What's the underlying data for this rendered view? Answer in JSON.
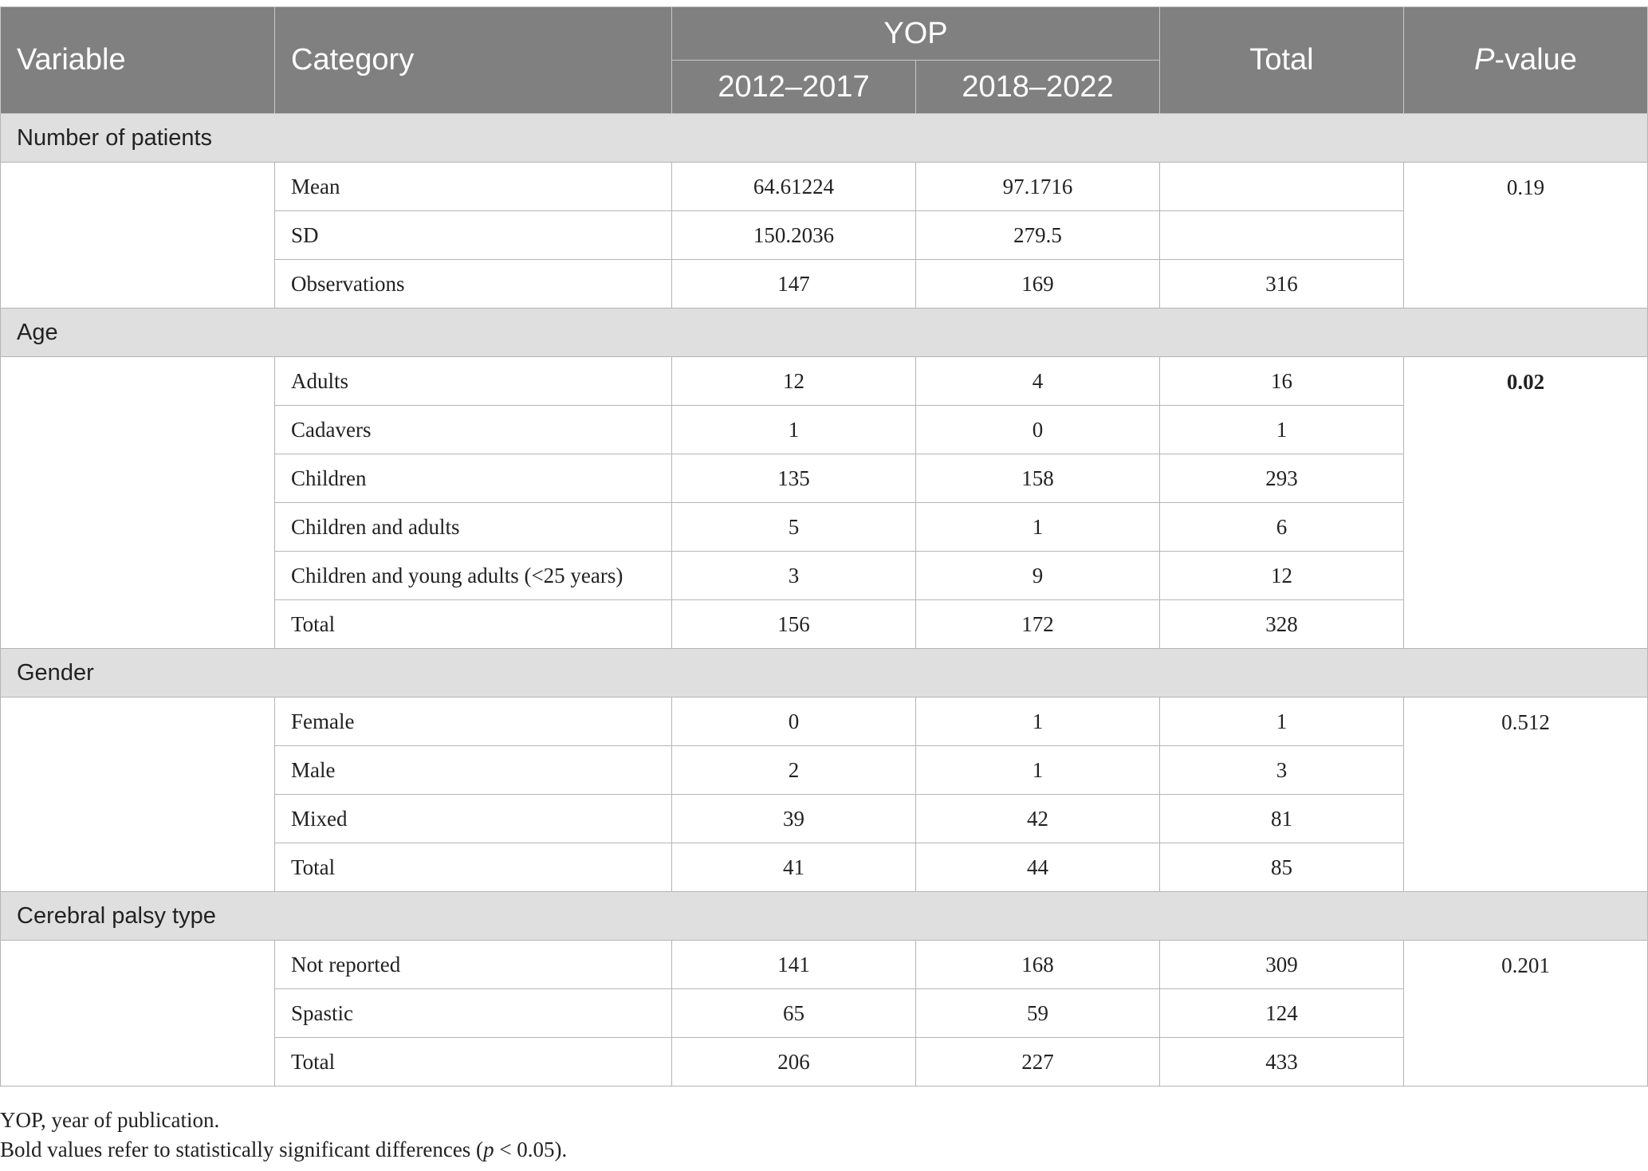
{
  "header": {
    "variable": "Variable",
    "category": "Category",
    "yop": "YOP",
    "period1": "2012–2017",
    "period2": "2018–2022",
    "total": "Total",
    "pvalue_italic": "P",
    "pvalue_rest": "-value"
  },
  "sections": [
    {
      "title": "Number of patients",
      "pvalue": "0.19",
      "pvalue_bold": false,
      "rows": [
        {
          "category": "Mean",
          "p1": "64.61224",
          "p2": "97.1716",
          "total": ""
        },
        {
          "category": "SD",
          "p1": "150.2036",
          "p2": "279.5",
          "total": ""
        },
        {
          "category": "Observations",
          "p1": "147",
          "p2": "169",
          "total": "316"
        }
      ]
    },
    {
      "title": "Age",
      "pvalue": "0.02",
      "pvalue_bold": true,
      "rows": [
        {
          "category": "Adults",
          "p1": "12",
          "p2": "4",
          "total": "16"
        },
        {
          "category": "Cadavers",
          "p1": "1",
          "p2": "0",
          "total": "1"
        },
        {
          "category": "Children",
          "p1": "135",
          "p2": "158",
          "total": "293"
        },
        {
          "category": "Children and adults",
          "p1": "5",
          "p2": "1",
          "total": "6"
        },
        {
          "category": "Children and young adults (<25 years)",
          "p1": "3",
          "p2": "9",
          "total": "12"
        },
        {
          "category": "Total",
          "p1": "156",
          "p2": "172",
          "total": "328"
        }
      ]
    },
    {
      "title": "Gender",
      "pvalue": "0.512",
      "pvalue_bold": false,
      "rows": [
        {
          "category": "Female",
          "p1": "0",
          "p2": "1",
          "total": "1"
        },
        {
          "category": "Male",
          "p1": "2",
          "p2": "1",
          "total": "3"
        },
        {
          "category": "Mixed",
          "p1": "39",
          "p2": "42",
          "total": "81"
        },
        {
          "category": "Total",
          "p1": "41",
          "p2": "44",
          "total": "85"
        }
      ]
    },
    {
      "title": "Cerebral palsy type",
      "pvalue": "0.201",
      "pvalue_bold": false,
      "rows": [
        {
          "category": "Not reported",
          "p1": "141",
          "p2": "168",
          "total": "309"
        },
        {
          "category": "Spastic",
          "p1": "65",
          "p2": "59",
          "total": "124"
        },
        {
          "category": "Total",
          "p1": "206",
          "p2": "227",
          "total": "433"
        }
      ]
    }
  ],
  "notes": {
    "line1": "YOP, year of publication.",
    "line2_pre": "Bold values refer to statistically significant differences (",
    "line2_italic": "p",
    "line2_post": " < 0.05)."
  }
}
